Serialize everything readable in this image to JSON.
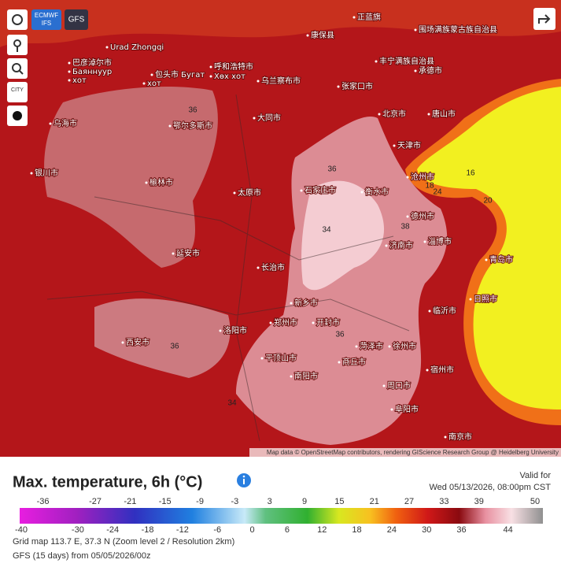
{
  "controls": {
    "ecmwf": [
      "ECMWF",
      "IFS"
    ],
    "gfs": "GFS",
    "city": "CITY"
  },
  "map": {
    "labels": [
      "正蓝旗",
      "康保县",
      "围场满族蒙古族自治县",
      "Urad Zhongqi",
      "巴彦淖尔市",
      "Баяннуур",
      "хот",
      "包头市 Бугат",
      "хот",
      "呼和浩特市",
      "Хөх хот",
      "乌兰察布市",
      "张家口市",
      "丰宁满族自治县",
      "承德市",
      "北京市",
      "唐山市",
      "天津市",
      "大同市",
      "鄂尔多斯市",
      "乌海市",
      "银川市",
      "榆林市",
      "石家庄市",
      "太原市",
      "衡水市",
      "沧州市",
      "德州市",
      "济南市",
      "淄博市",
      "延安市",
      "长治市",
      "新乡市",
      "郑州市",
      "开封市",
      "洛阳市",
      "西安市",
      "菏泽市",
      "临沂市",
      "徐州市",
      "商丘市",
      "周口市",
      "阜阳市",
      "南阳市",
      "平顶山市",
      "南京市",
      "宿州市",
      "日照市",
      "青岛市"
    ],
    "contour_labels": [
      "36",
      "36",
      "34",
      "38",
      "36",
      "36",
      "34",
      "16",
      "18",
      "20",
      "24"
    ],
    "attribution": "Map data © OpenStreetMap contributors, rendering GIScience Research Group @ Heidelberg University"
  },
  "legend": {
    "title": "Max. temperature, 6h (°C)",
    "valid_label": "Valid for",
    "valid_time": "Wed 05/13/2026, 08:00pm CST",
    "scale_upper": [
      -36,
      -27,
      -21,
      -15,
      -9,
      -3,
      3,
      9,
      15,
      21,
      27,
      33,
      39,
      50
    ],
    "scale_lower": [
      -40,
      -30,
      -24,
      -18,
      -12,
      -6,
      0,
      6,
      12,
      18,
      24,
      30,
      36,
      44
    ],
    "grid_info": "Grid map 113.7 E, 37.3 N (Zoom level 2 / Resolution 2km)",
    "run_info": "GFS (15 days) from 05/05/2026/00z"
  }
}
